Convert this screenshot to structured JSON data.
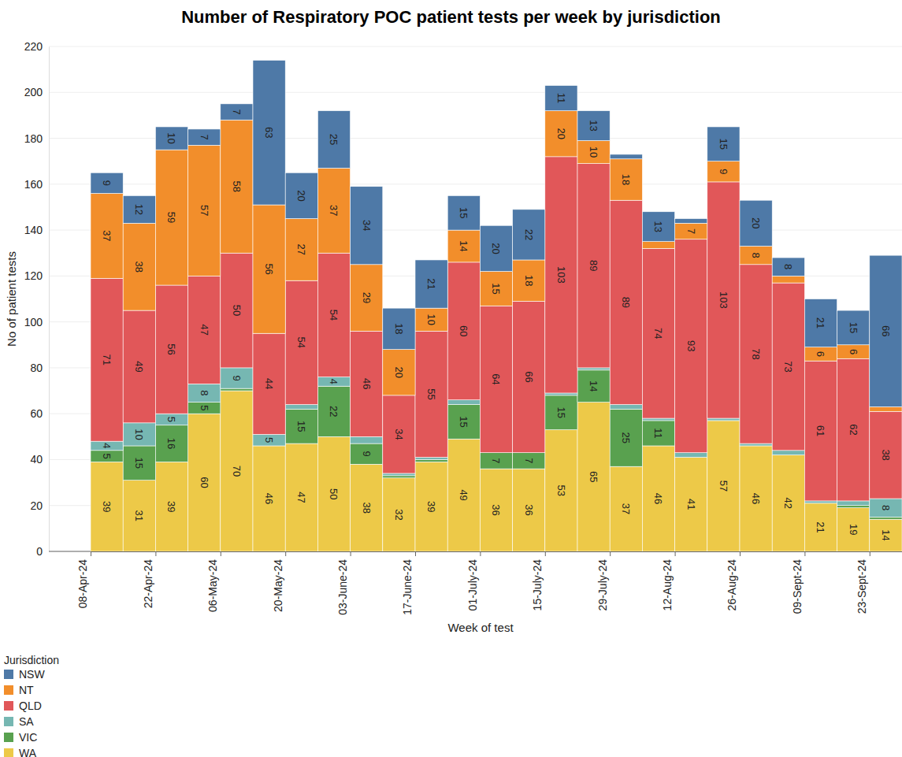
{
  "chart_data": {
    "type": "bar",
    "title": "Number of Respiratory POC patient tests per week by jurisdiction",
    "x_label": "Week of test",
    "y_label": "No of patient tests",
    "legend_title": "Jurisdiction",
    "categories": [
      "08-Apr-24",
      null,
      "22-Apr-24",
      null,
      "06-May-24",
      null,
      "20-May-24",
      null,
      "03-June-24",
      null,
      "17-June-24",
      null,
      "01-July-24",
      null,
      "15-July-24",
      null,
      "29-July-24",
      null,
      "12-Aug-24",
      null,
      "26-Aug-24",
      null,
      "09-Sept-24",
      null,
      "23-Sept-24"
    ],
    "series": [
      {
        "name": "NSW",
        "color": "#4e79a7",
        "values": [
          9,
          12,
          10,
          7,
          7,
          63,
          20,
          25,
          34,
          18,
          21,
          15,
          20,
          22,
          11,
          13,
          2,
          13,
          2,
          15,
          20,
          8,
          21,
          15,
          66
        ]
      },
      {
        "name": "NT",
        "color": "#f28e2b",
        "values": [
          37,
          38,
          59,
          57,
          58,
          56,
          27,
          37,
          29,
          20,
          10,
          14,
          15,
          18,
          20,
          10,
          18,
          3,
          7,
          9,
          8,
          3,
          6,
          6,
          2
        ]
      },
      {
        "name": "QLD",
        "color": "#e15759",
        "values": [
          71,
          49,
          56,
          47,
          50,
          44,
          54,
          54,
          46,
          34,
          55,
          60,
          64,
          66,
          103,
          89,
          89,
          74,
          93,
          103,
          78,
          73,
          61,
          62,
          38
        ]
      },
      {
        "name": "SA",
        "color": "#76b7b2",
        "values": [
          4,
          10,
          5,
          8,
          9,
          5,
          2,
          4,
          3,
          1,
          1,
          2,
          0,
          0,
          1,
          1,
          2,
          1,
          2,
          1,
          1,
          2,
          1,
          2,
          8
        ]
      },
      {
        "name": "VIC",
        "color": "#59a14f",
        "values": [
          5,
          15,
          16,
          5,
          1,
          0,
          15,
          22,
          9,
          1,
          1,
          15,
          7,
          7,
          15,
          14,
          25,
          11,
          0,
          0,
          0,
          0,
          0,
          1,
          1
        ]
      },
      {
        "name": "WA",
        "color": "#edc948",
        "values": [
          39,
          31,
          39,
          60,
          70,
          46,
          47,
          50,
          38,
          32,
          39,
          49,
          36,
          36,
          53,
          65,
          37,
          46,
          41,
          57,
          46,
          42,
          21,
          19,
          14
        ]
      }
    ],
    "ylim": [
      0,
      220
    ],
    "yticks": [
      0,
      20,
      40,
      60,
      80,
      100,
      120,
      140,
      160,
      180,
      200,
      220
    ],
    "stacked": true,
    "grid": true,
    "data_labels": true,
    "legend": "bottom-left"
  }
}
